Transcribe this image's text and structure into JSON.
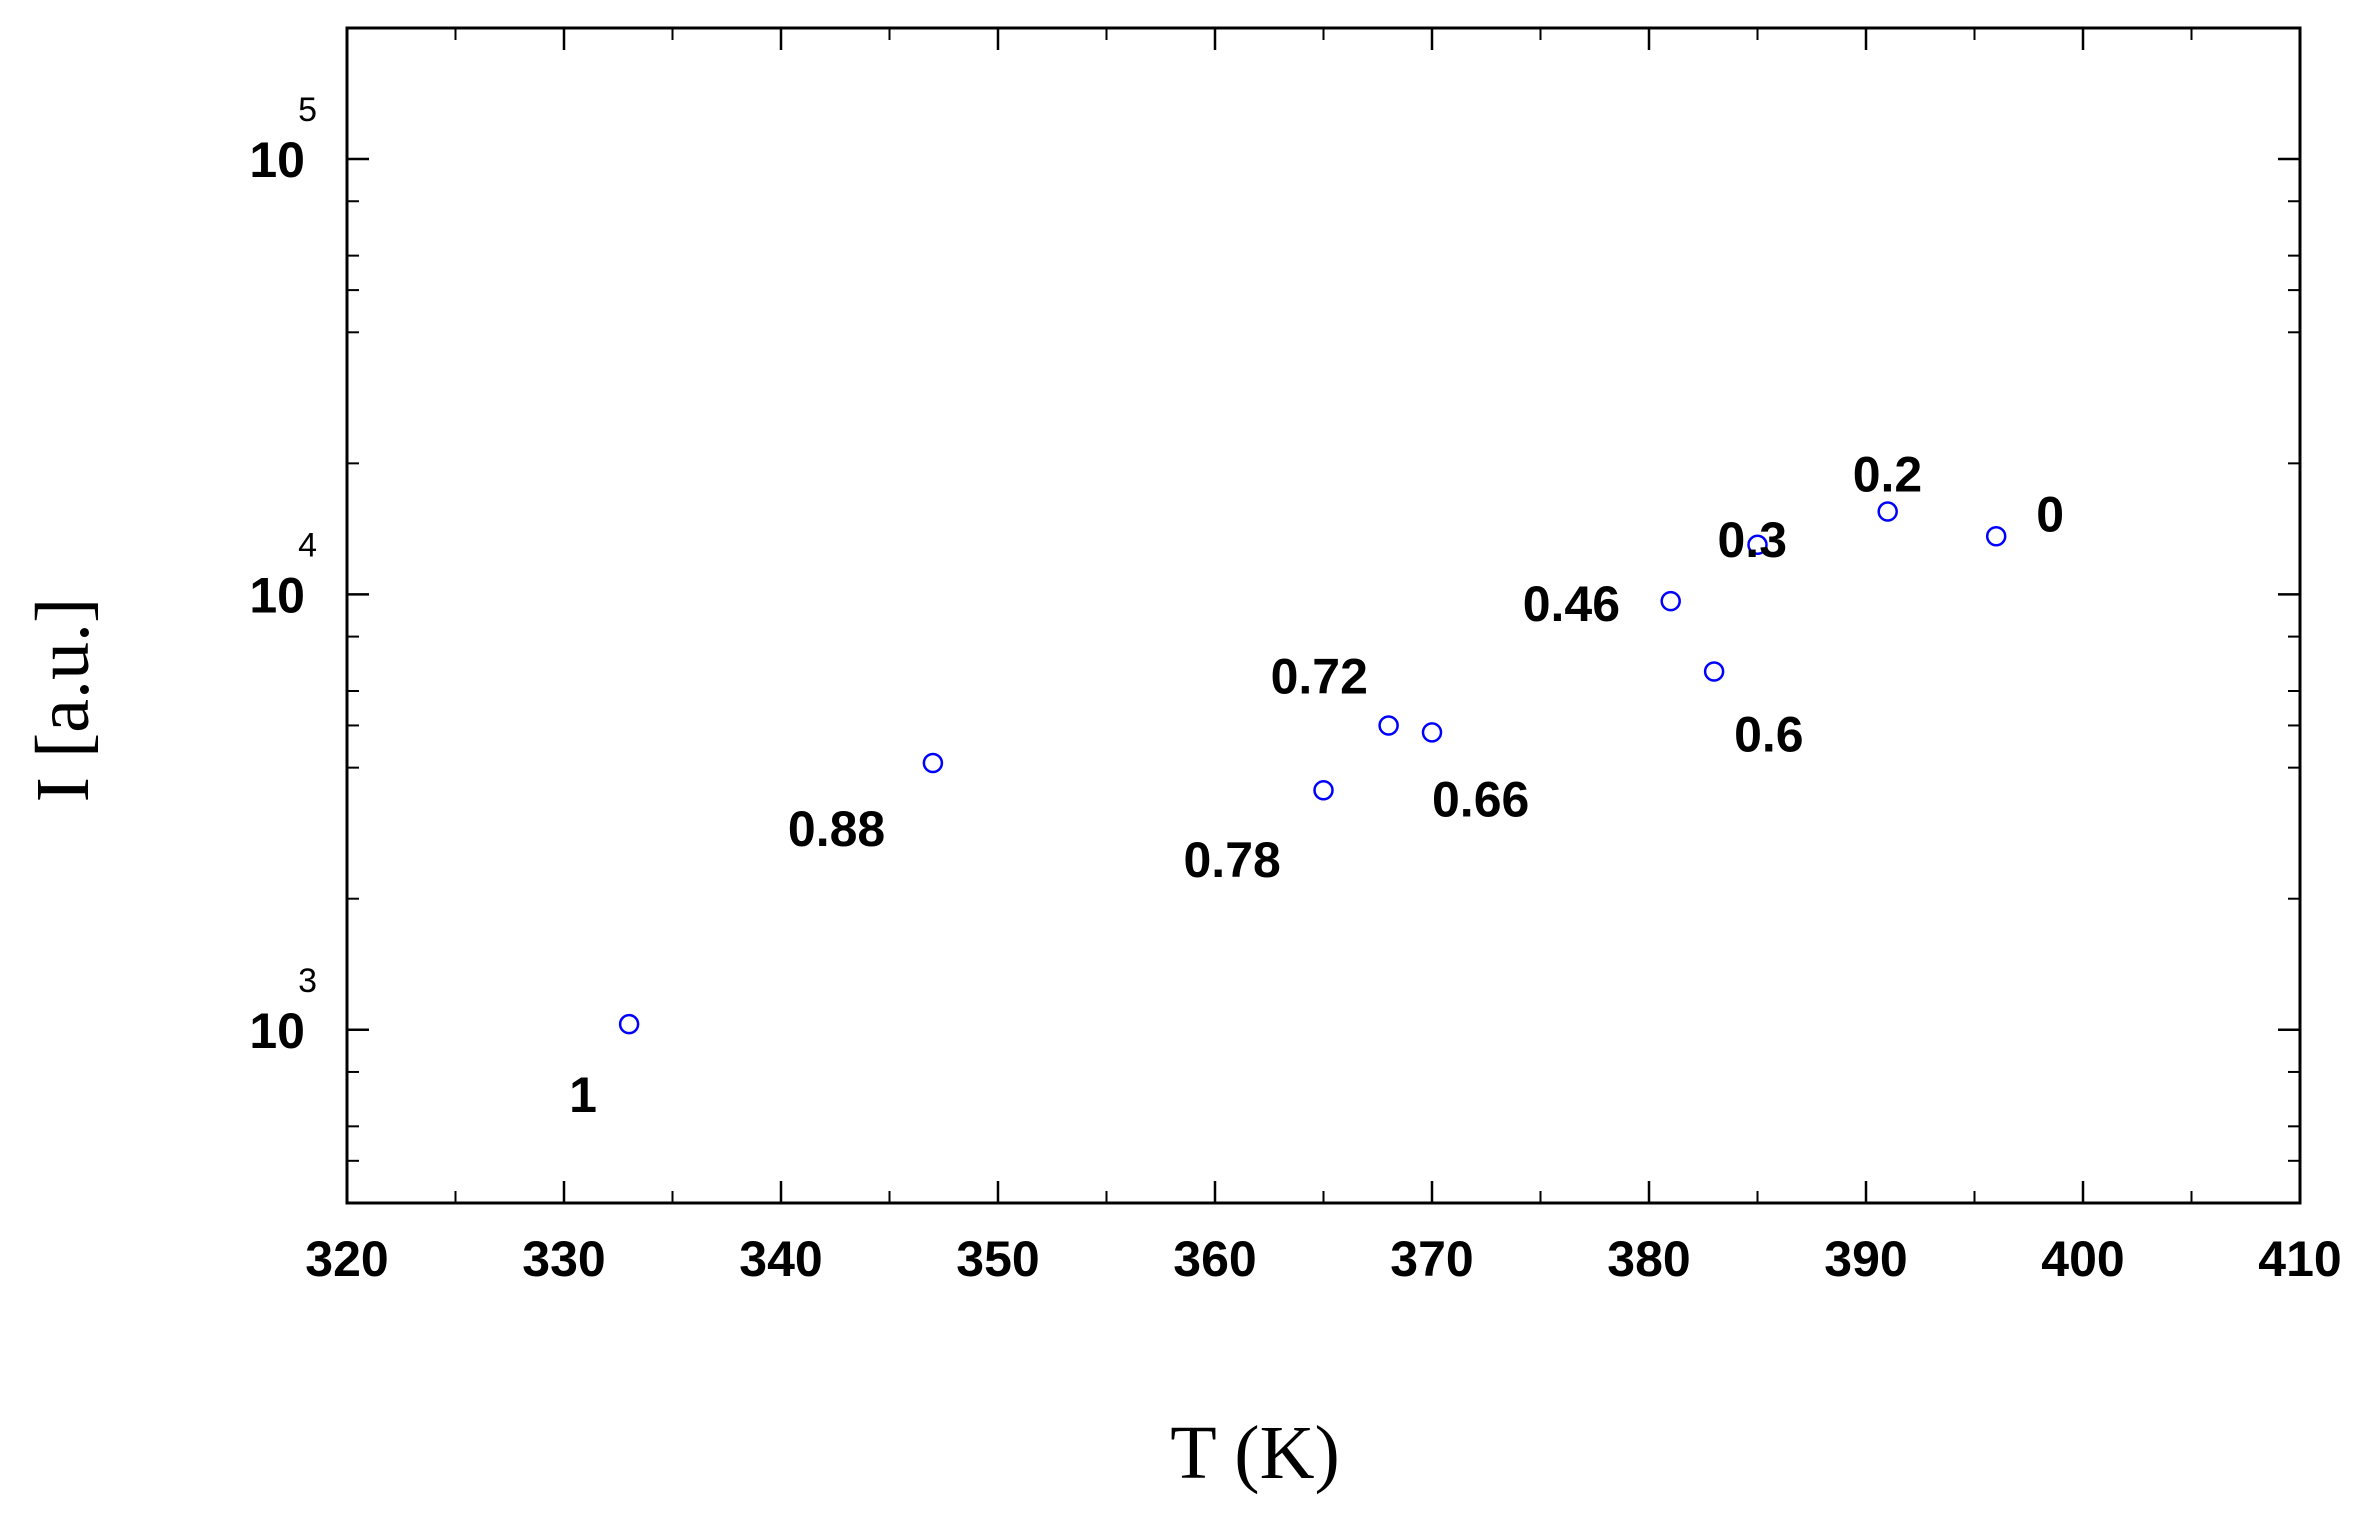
{
  "chart_data": {
    "type": "scatter",
    "title": "",
    "xlabel": "T (K)",
    "ylabel": "I [a.u.]",
    "xlim": [
      320,
      410
    ],
    "ylim": [
      400,
      200000
    ],
    "yscale": "log",
    "xticks": [
      320,
      330,
      340,
      350,
      360,
      370,
      380,
      390,
      400,
      410
    ],
    "yticks": [
      {
        "value": 1000,
        "base": "10",
        "exp": "3"
      },
      {
        "value": 10000,
        "base": "10",
        "exp": "4"
      },
      {
        "value": 100000,
        "base": "10",
        "exp": "5"
      }
    ],
    "grid": false,
    "marker_color": "#0000ff",
    "points": [
      {
        "x": 333,
        "y": 1030,
        "label": "1"
      },
      {
        "x": 347,
        "y": 4100,
        "label": "0.88"
      },
      {
        "x": 365,
        "y": 3550,
        "label": "0.78"
      },
      {
        "x": 368,
        "y": 5000,
        "label": "0.72"
      },
      {
        "x": 370,
        "y": 4820,
        "label": "0.66"
      },
      {
        "x": 381,
        "y": 9650,
        "label": "0.46"
      },
      {
        "x": 383,
        "y": 6650,
        "label": "0.6"
      },
      {
        "x": 385,
        "y": 13000,
        "label": "0.3"
      },
      {
        "x": 391,
        "y": 15500,
        "label": "0.2"
      },
      {
        "x": 396,
        "y": 13600,
        "label": "0"
      }
    ]
  }
}
